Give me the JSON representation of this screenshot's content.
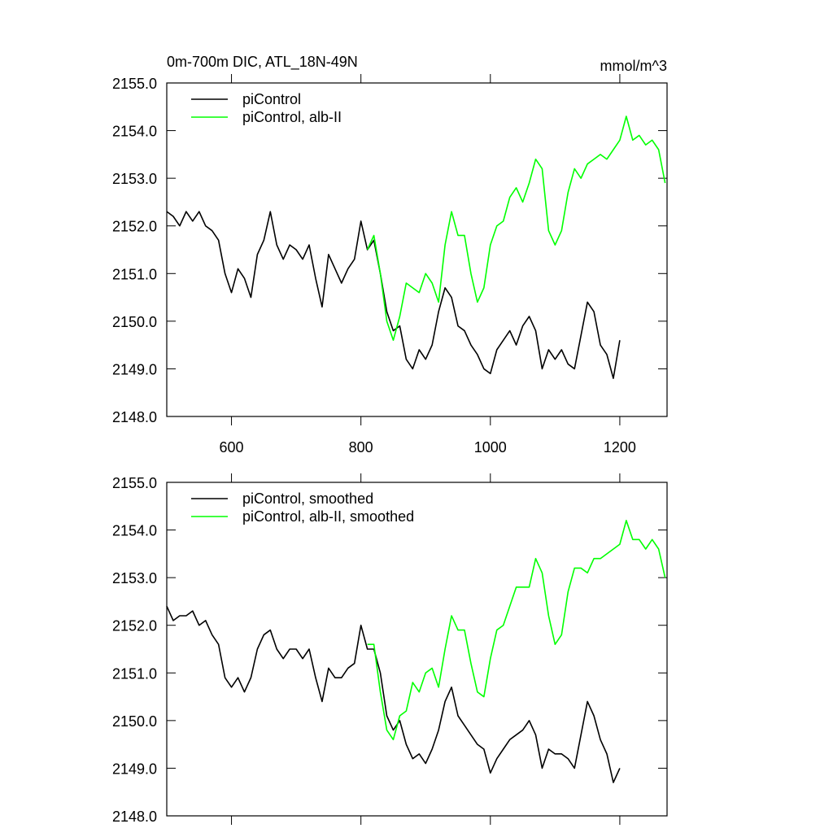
{
  "chart_data": [
    {
      "type": "line",
      "title": "0m-700m DIC, ATL_18N-49N",
      "subtitle": "mmol/m^3",
      "x": [
        500,
        510,
        520,
        530,
        540,
        550,
        560,
        570,
        580,
        590,
        600,
        610,
        620,
        630,
        640,
        650,
        660,
        670,
        680,
        690,
        700,
        710,
        720,
        730,
        740,
        750,
        760,
        770,
        780,
        790,
        800,
        810,
        820,
        830,
        840,
        850,
        860,
        870,
        880,
        890,
        900,
        910,
        920,
        930,
        940,
        950,
        960,
        970,
        980,
        990,
        1000,
        1010,
        1020,
        1030,
        1040,
        1050,
        1060,
        1070,
        1080,
        1090,
        1100,
        1110,
        1120,
        1130,
        1140,
        1150,
        1160,
        1170,
        1180,
        1190,
        1200,
        1210,
        1220,
        1230,
        1240,
        1250,
        1260,
        1270
      ],
      "series": [
        {
          "name": "piControl",
          "color": "#000000",
          "values": [
            2152.3,
            2152.2,
            2152.0,
            2152.3,
            2152.1,
            2152.3,
            2152.0,
            2151.9,
            2151.7,
            2151.0,
            2150.6,
            2151.1,
            2150.9,
            2150.5,
            2151.4,
            2151.7,
            2152.3,
            2151.6,
            2151.3,
            2151.6,
            2151.5,
            2151.3,
            2151.6,
            2150.9,
            2150.3,
            2151.4,
            2151.1,
            2150.8,
            2151.1,
            2151.3,
            2152.1,
            2151.5,
            2151.7,
            2151.0,
            2150.2,
            2149.8,
            2149.9,
            2149.2,
            2149.0,
            2149.4,
            2149.2,
            2149.5,
            2150.2,
            2150.7,
            2150.5,
            2149.9,
            2149.8,
            2149.5,
            2149.3,
            2149.0,
            2148.9,
            2149.4,
            2149.6,
            2149.8,
            2149.5,
            2149.9,
            2150.1,
            2149.8,
            2149.0,
            2149.4,
            2149.2,
            2149.4,
            2149.1,
            2149.0,
            2149.7,
            2150.4,
            2150.2,
            2149.5,
            2149.3,
            2148.8,
            2149.6,
            null,
            null,
            null,
            null,
            null,
            null,
            null
          ]
        },
        {
          "name": "piControl, alb-II",
          "color": "#00ff00",
          "values": [
            null,
            null,
            null,
            null,
            null,
            null,
            null,
            null,
            null,
            null,
            null,
            null,
            null,
            null,
            null,
            null,
            null,
            null,
            null,
            null,
            null,
            null,
            null,
            null,
            null,
            null,
            null,
            null,
            null,
            null,
            null,
            2151.5,
            2151.8,
            2151.0,
            2150.0,
            2149.6,
            2150.1,
            2150.8,
            2150.7,
            2150.6,
            2151.0,
            2150.8,
            2150.4,
            2151.6,
            2152.3,
            2151.8,
            2151.8,
            2151.0,
            2150.4,
            2150.7,
            2151.6,
            2152.0,
            2152.1,
            2152.6,
            2152.8,
            2152.5,
            2152.9,
            2153.4,
            2153.2,
            2151.9,
            2151.6,
            2151.9,
            2152.7,
            2153.2,
            2153.0,
            2153.3,
            2153.4,
            2153.5,
            2153.4,
            2153.6,
            2153.8,
            2154.3,
            2153.8,
            2153.9,
            2153.7,
            2153.8,
            2153.6,
            2152.9
          ]
        }
      ],
      "xlim": [
        500,
        1273
      ],
      "xticks": [
        600,
        800,
        1000,
        1200
      ],
      "xtick_labels": true,
      "ylim": [
        2148,
        2155
      ],
      "yticks": [
        {
          "value": 2148,
          "label": "2148.0"
        },
        {
          "value": 2149,
          "label": "2149.0"
        },
        {
          "value": 2150,
          "label": "2150.0"
        },
        {
          "value": 2151,
          "label": "2151.0"
        },
        {
          "value": 2152,
          "label": "2152.0"
        },
        {
          "value": 2153,
          "label": "2153.0"
        },
        {
          "value": 2154,
          "label": "2154.0"
        },
        {
          "value": 2155,
          "label": "2155.0"
        }
      ],
      "legend": "top-left",
      "grid": false
    },
    {
      "type": "line",
      "x": [
        500,
        510,
        520,
        530,
        540,
        550,
        560,
        570,
        580,
        590,
        600,
        610,
        620,
        630,
        640,
        650,
        660,
        670,
        680,
        690,
        700,
        710,
        720,
        730,
        740,
        750,
        760,
        770,
        780,
        790,
        800,
        810,
        820,
        830,
        840,
        850,
        860,
        870,
        880,
        890,
        900,
        910,
        920,
        930,
        940,
        950,
        960,
        970,
        980,
        990,
        1000,
        1010,
        1020,
        1030,
        1040,
        1050,
        1060,
        1070,
        1080,
        1090,
        1100,
        1110,
        1120,
        1130,
        1140,
        1150,
        1160,
        1170,
        1180,
        1190,
        1200,
        1210,
        1220,
        1230,
        1240,
        1250,
        1260,
        1270
      ],
      "series": [
        {
          "name": "piControl, smoothed",
          "color": "#000000",
          "values": [
            2152.4,
            2152.1,
            2152.2,
            2152.2,
            2152.3,
            2152.0,
            2152.1,
            2151.8,
            2151.6,
            2150.9,
            2150.7,
            2150.9,
            2150.6,
            2150.9,
            2151.5,
            2151.8,
            2151.9,
            2151.5,
            2151.3,
            2151.5,
            2151.5,
            2151.3,
            2151.5,
            2150.9,
            2150.4,
            2151.1,
            2150.9,
            2150.9,
            2151.1,
            2151.2,
            2152.0,
            2151.5,
            2151.5,
            2151.0,
            2150.1,
            2149.8,
            2150.0,
            2149.5,
            2149.2,
            2149.3,
            2149.1,
            2149.4,
            2149.8,
            2150.4,
            2150.7,
            2150.1,
            2149.9,
            2149.7,
            2149.5,
            2149.4,
            2148.9,
            2149.2,
            2149.4,
            2149.6,
            2149.7,
            2149.8,
            2150.0,
            2149.7,
            2149.0,
            2149.4,
            2149.3,
            2149.3,
            2149.2,
            2149.0,
            2149.7,
            2150.4,
            2150.1,
            2149.6,
            2149.3,
            2148.7,
            2149.0,
            null,
            null,
            null,
            null,
            null,
            null,
            null
          ]
        },
        {
          "name": "piControl, alb-II, smoothed",
          "color": "#00ff00",
          "values": [
            null,
            null,
            null,
            null,
            null,
            null,
            null,
            null,
            null,
            null,
            null,
            null,
            null,
            null,
            null,
            null,
            null,
            null,
            null,
            null,
            null,
            null,
            null,
            null,
            null,
            null,
            null,
            null,
            null,
            null,
            null,
            2151.6,
            2151.6,
            2150.6,
            2149.8,
            2149.6,
            2150.1,
            2150.2,
            2150.8,
            2150.6,
            2151.0,
            2151.1,
            2150.7,
            2151.5,
            2152.2,
            2151.9,
            2151.9,
            2151.2,
            2150.6,
            2150.5,
            2151.3,
            2151.9,
            2152.0,
            2152.4,
            2152.8,
            2152.8,
            2152.8,
            2153.4,
            2153.1,
            2152.2,
            2151.6,
            2151.8,
            2152.7,
            2153.2,
            2153.2,
            2153.1,
            2153.4,
            2153.4,
            2153.5,
            2153.6,
            2153.7,
            2154.2,
            2153.8,
            2153.8,
            2153.6,
            2153.8,
            2153.6,
            2153.0
          ]
        }
      ],
      "xlim": [
        500,
        1273
      ],
      "xticks": [
        600,
        800,
        1000,
        1200
      ],
      "xtick_labels": false,
      "ylim": [
        2148,
        2155
      ],
      "yticks": [
        {
          "value": 2148,
          "label": "2148.0"
        },
        {
          "value": 2149,
          "label": "2149.0"
        },
        {
          "value": 2150,
          "label": "2150.0"
        },
        {
          "value": 2151,
          "label": "2151.0"
        },
        {
          "value": 2152,
          "label": "2152.0"
        },
        {
          "value": 2153,
          "label": "2153.0"
        },
        {
          "value": 2154,
          "label": "2154.0"
        },
        {
          "value": 2155,
          "label": "2155.0"
        }
      ],
      "legend": "top-left",
      "grid": false
    }
  ]
}
